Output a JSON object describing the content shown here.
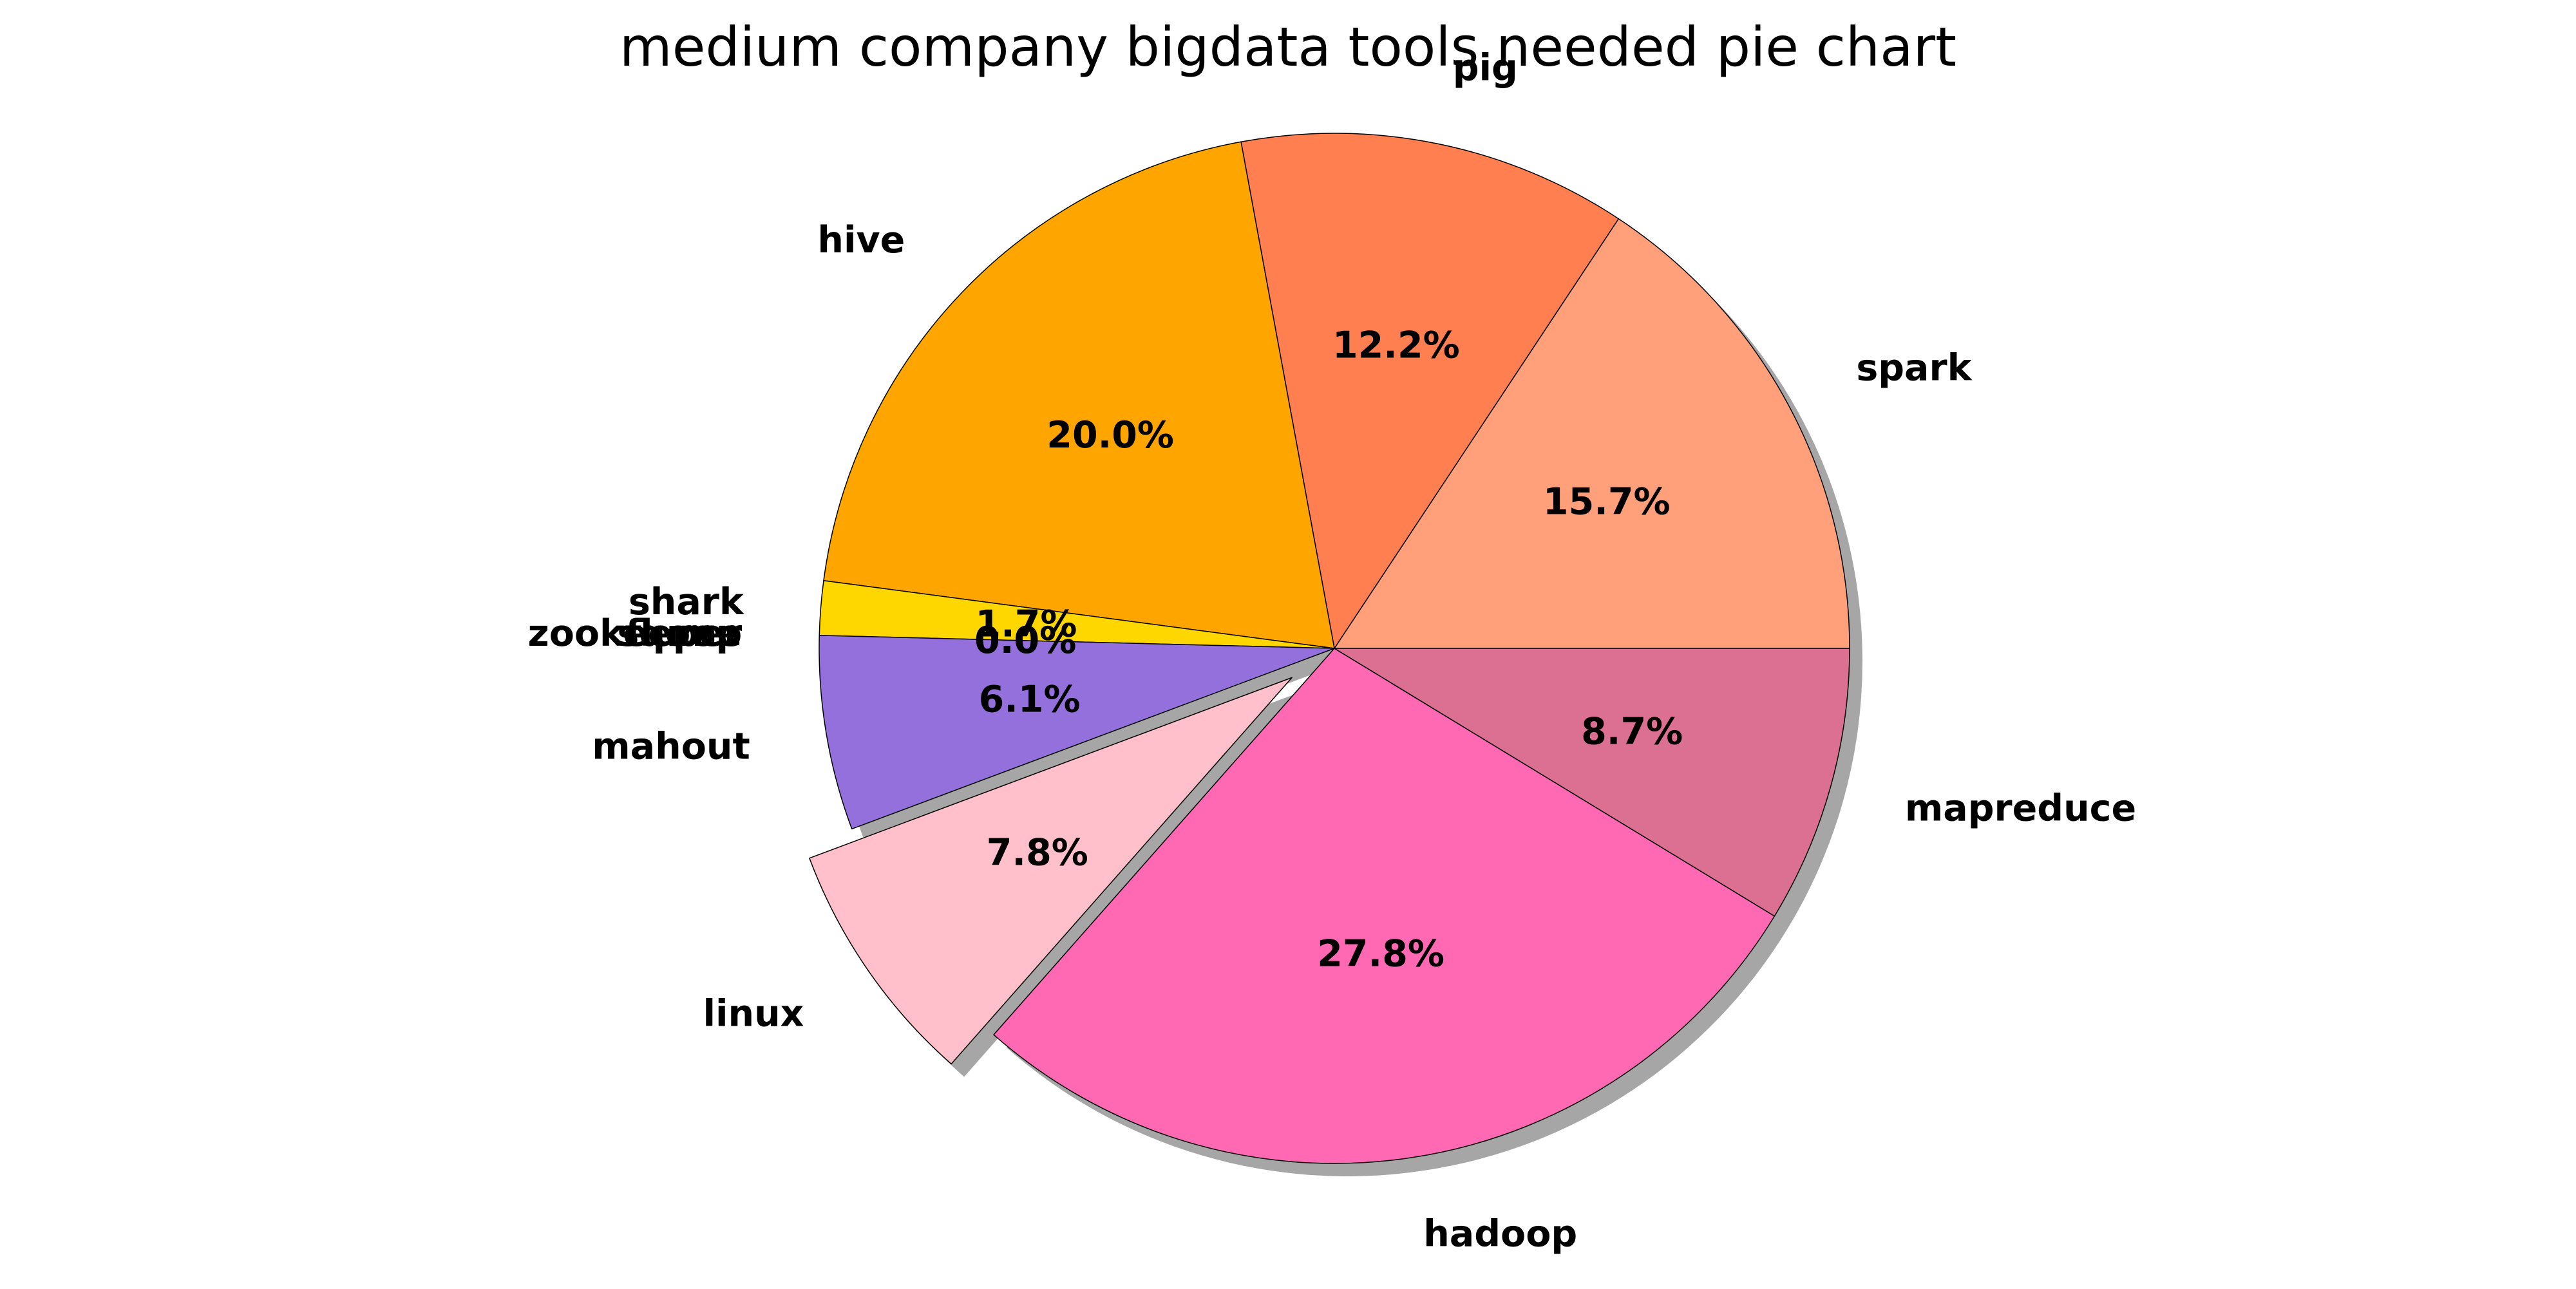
{
  "chart_data": {
    "type": "pie",
    "title": "medium company bigdata tools needed pie chart",
    "start_angle_deg": 0,
    "direction": "counterclockwise",
    "shadow": true,
    "slices": [
      {
        "label": "spark",
        "value": 15.7,
        "pct_label": "15.7%",
        "color": "#FFA07A"
      },
      {
        "label": "pig",
        "value": 12.2,
        "pct_label": "12.2%",
        "color": "#FF7F50"
      },
      {
        "label": "hive",
        "value": 20.0,
        "pct_label": "20.0%",
        "color": "#FFA500"
      },
      {
        "label": "shark",
        "value": 1.7,
        "pct_label": "1.7%",
        "color": "#FFD700"
      },
      {
        "label": "flume",
        "value": 0.0,
        "pct_label": "0.0%",
        "color": "#FF8C00"
      },
      {
        "label": "sqoop",
        "value": 0.0,
        "pct_label": "0.0%",
        "color": "#DAA520"
      },
      {
        "label": "zookeeper",
        "value": 0.0,
        "pct_label": "0.0%",
        "color": "#B8860B"
      },
      {
        "label": "mahout",
        "value": 6.1,
        "pct_label": "6.1%",
        "color": "#9370DB"
      },
      {
        "label": "linux",
        "value": 7.8,
        "pct_label": "7.8%",
        "color": "#FFC0CB",
        "exploded": true
      },
      {
        "label": "hadoop",
        "value": 27.8,
        "pct_label": "27.8%",
        "color": "#FF69B4"
      },
      {
        "label": "mapreduce",
        "value": 8.7,
        "pct_label": "8.7%",
        "color": "#DB7093"
      }
    ]
  }
}
